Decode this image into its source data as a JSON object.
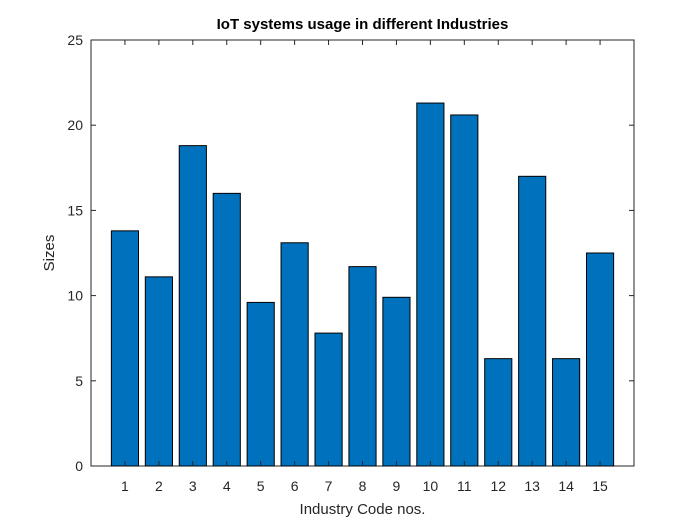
{
  "chart_data": {
    "type": "bar",
    "title": "IoT systems usage in different Industries",
    "xlabel": "Industry Code nos.",
    "ylabel": "Sizes",
    "categories": [
      "1",
      "2",
      "3",
      "4",
      "5",
      "6",
      "7",
      "8",
      "9",
      "10",
      "11",
      "12",
      "13",
      "14",
      "15"
    ],
    "values": [
      13.8,
      11.1,
      18.8,
      16.0,
      9.6,
      13.1,
      7.8,
      11.7,
      9.9,
      21.3,
      20.6,
      6.3,
      17.0,
      6.3,
      12.5
    ],
    "ylim": [
      0,
      25
    ],
    "yticks": [
      0,
      5,
      10,
      15,
      20,
      25
    ],
    "xlim": [
      0,
      16
    ],
    "grid": false,
    "bar_color": "#0072BD"
  }
}
